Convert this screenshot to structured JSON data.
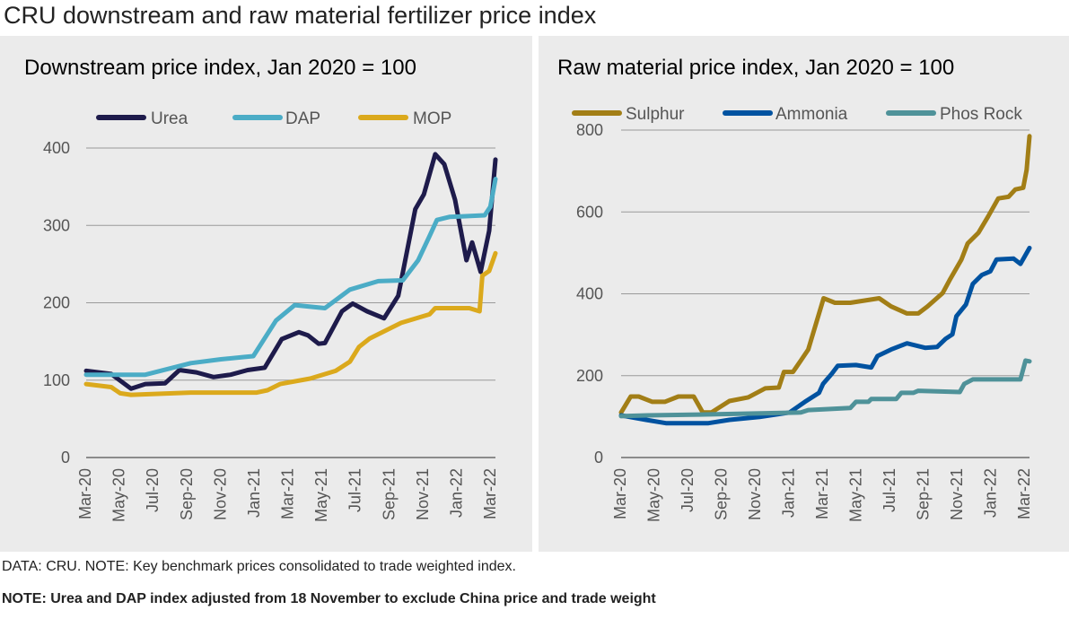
{
  "title": "CRU downstream and raw material fertilizer price index",
  "footer": {
    "source": "DATA: CRU. NOTE: Key benchmark prices consolidated to trade weighted index.",
    "note": "NOTE: Urea and DAP index adjusted from 18 November to exclude China price and trade weight"
  },
  "chart_data": [
    {
      "type": "line",
      "title": "Downstream price index, Jan 2020 = 100",
      "ylim": [
        0,
        400
      ],
      "yticks": [
        0,
        100,
        200,
        300,
        400
      ],
      "xlim": [
        "2020-03-01",
        "2022-03-01"
      ],
      "xticks": [
        "Mar-20",
        "May-20",
        "Jul-20",
        "Sep-20",
        "Nov-20",
        "Jan-21",
        "Mar-21",
        "May-21",
        "Jul-21",
        "Sep-21",
        "Nov-21",
        "Jan-22",
        "Mar-22"
      ],
      "grid": true,
      "legend": "top",
      "series": [
        {
          "name": "Urea",
          "color": "#1e1b4b",
          "points": [
            [
              "2020-03-01",
              112
            ],
            [
              "2020-04-15",
              108
            ],
            [
              "2020-05-20",
              89
            ],
            [
              "2020-06-15",
              95
            ],
            [
              "2020-07-20",
              96
            ],
            [
              "2020-08-15",
              113
            ],
            [
              "2020-09-15",
              110
            ],
            [
              "2020-10-15",
              104
            ],
            [
              "2020-11-15",
              107
            ],
            [
              "2020-12-15",
              113
            ],
            [
              "2021-01-15",
              116
            ],
            [
              "2021-02-15",
              153
            ],
            [
              "2021-03-15",
              162
            ],
            [
              "2021-04-01",
              158
            ],
            [
              "2021-04-20",
              147
            ],
            [
              "2021-05-01",
              148
            ],
            [
              "2021-06-01",
              189
            ],
            [
              "2021-06-20",
              199
            ],
            [
              "2021-07-15",
              189
            ],
            [
              "2021-08-15",
              180
            ],
            [
              "2021-09-10",
              209
            ],
            [
              "2021-10-10",
              321
            ],
            [
              "2021-10-25",
              340
            ],
            [
              "2021-11-15",
              392
            ],
            [
              "2021-12-01",
              379
            ],
            [
              "2021-12-20",
              333
            ],
            [
              "2022-01-10",
              255
            ],
            [
              "2022-01-20",
              278
            ],
            [
              "2022-02-05",
              240
            ],
            [
              "2022-02-20",
              293
            ],
            [
              "2022-03-01",
              385
            ]
          ]
        },
        {
          "name": "DAP",
          "color": "#4bacc6",
          "points": [
            [
              "2020-03-01",
              107
            ],
            [
              "2020-06-15",
              107
            ],
            [
              "2020-09-05",
              122
            ],
            [
              "2020-10-28",
              127
            ],
            [
              "2020-12-10",
              130
            ],
            [
              "2020-12-25",
              131
            ],
            [
              "2021-02-05",
              177
            ],
            [
              "2021-03-08",
              197
            ],
            [
              "2021-05-01",
              193
            ],
            [
              "2021-06-15",
              217
            ],
            [
              "2021-08-05",
              228
            ],
            [
              "2021-09-18",
              229
            ],
            [
              "2021-10-15",
              255
            ],
            [
              "2021-11-05",
              286
            ],
            [
              "2021-11-18",
              307
            ],
            [
              "2021-12-10",
              311
            ],
            [
              "2022-02-12",
              313
            ],
            [
              "2022-02-22",
              324
            ],
            [
              "2022-03-01",
              360
            ]
          ]
        },
        {
          "name": "MOP",
          "color": "#dba91c",
          "points": [
            [
              "2020-03-01",
              95
            ],
            [
              "2020-04-15",
              91
            ],
            [
              "2020-05-01",
              83
            ],
            [
              "2020-05-20",
              81
            ],
            [
              "2020-09-05",
              84
            ],
            [
              "2021-01-01",
              84
            ],
            [
              "2021-01-20",
              87
            ],
            [
              "2021-02-12",
              95
            ],
            [
              "2021-04-05",
              102
            ],
            [
              "2021-05-20",
              112
            ],
            [
              "2021-06-15",
              124
            ],
            [
              "2021-07-01",
              143
            ],
            [
              "2021-07-20",
              154
            ],
            [
              "2021-09-15",
              174
            ],
            [
              "2021-11-05",
              185
            ],
            [
              "2021-11-15",
              193
            ],
            [
              "2022-01-15",
              193
            ],
            [
              "2022-02-03",
              189
            ],
            [
              "2022-02-08",
              235
            ],
            [
              "2022-02-20",
              241
            ],
            [
              "2022-03-01",
              264
            ]
          ]
        }
      ]
    },
    {
      "type": "line",
      "title": "Raw material price index, Jan 2020 = 100",
      "ylim": [
        0,
        800
      ],
      "yticks": [
        0,
        200,
        400,
        600,
        800
      ],
      "xlim": [
        "2020-03-01",
        "2022-03-01"
      ],
      "xticks": [
        "Mar-20",
        "May-20",
        "Jul-20",
        "Sep-20",
        "Nov-20",
        "Jan-21",
        "Mar-21",
        "May-21",
        "Jul-21",
        "Sep-21",
        "Nov-21",
        "Jan-22",
        "Mar-22"
      ],
      "grid": true,
      "legend": "top",
      "series": [
        {
          "name": "Sulphur",
          "color": "#a27e16",
          "points": [
            [
              "2020-03-01",
              110
            ],
            [
              "2020-03-18",
              149
            ],
            [
              "2020-04-02",
              149
            ],
            [
              "2020-04-26",
              136
            ],
            [
              "2020-05-18",
              136
            ],
            [
              "2020-06-12",
              149
            ],
            [
              "2020-07-09",
              149
            ],
            [
              "2020-07-25",
              110
            ],
            [
              "2020-08-10",
              110
            ],
            [
              "2020-09-12",
              138
            ],
            [
              "2020-10-15",
              147
            ],
            [
              "2020-11-15",
              169
            ],
            [
              "2020-12-09",
              171
            ],
            [
              "2020-12-18",
              209
            ],
            [
              "2021-01-04",
              209
            ],
            [
              "2021-01-15",
              231
            ],
            [
              "2021-02-01",
              264
            ],
            [
              "2021-02-28",
              389
            ],
            [
              "2021-03-18",
              378
            ],
            [
              "2021-04-15",
              378
            ],
            [
              "2021-06-06",
              389
            ],
            [
              "2021-06-27",
              369
            ],
            [
              "2021-07-25",
              352
            ],
            [
              "2021-08-15",
              352
            ],
            [
              "2021-09-01",
              369
            ],
            [
              "2021-09-28",
              402
            ],
            [
              "2021-10-10",
              433
            ],
            [
              "2021-11-01",
              484
            ],
            [
              "2021-11-12",
              523
            ],
            [
              "2021-12-01",
              549
            ],
            [
              "2021-12-18",
              589
            ],
            [
              "2022-01-06",
              633
            ],
            [
              "2022-01-24",
              637
            ],
            [
              "2022-02-06",
              655
            ],
            [
              "2022-02-20",
              659
            ],
            [
              "2022-02-26",
              703
            ],
            [
              "2022-03-01",
              785
            ]
          ]
        },
        {
          "name": "Ammonia",
          "color": "#0052a0",
          "points": [
            [
              "2020-03-01",
              103
            ],
            [
              "2020-04-15",
              92
            ],
            [
              "2020-05-20",
              84
            ],
            [
              "2020-08-05",
              84
            ],
            [
              "2020-09-12",
              92
            ],
            [
              "2020-11-05",
              99
            ],
            [
              "2020-12-28",
              110
            ],
            [
              "2021-01-25",
              136
            ],
            [
              "2021-02-20",
              158
            ],
            [
              "2021-02-27",
              180
            ],
            [
              "2021-03-12",
              204
            ],
            [
              "2021-03-23",
              224
            ],
            [
              "2021-04-25",
              226
            ],
            [
              "2021-05-22",
              220
            ],
            [
              "2021-06-03",
              248
            ],
            [
              "2021-06-27",
              264
            ],
            [
              "2021-07-25",
              279
            ],
            [
              "2021-08-27",
              268
            ],
            [
              "2021-09-18",
              270
            ],
            [
              "2021-10-03",
              290
            ],
            [
              "2021-10-15",
              301
            ],
            [
              "2021-10-22",
              345
            ],
            [
              "2021-11-09",
              374
            ],
            [
              "2021-11-21",
              424
            ],
            [
              "2021-12-07",
              446
            ],
            [
              "2021-12-22",
              455
            ],
            [
              "2022-01-03",
              484
            ],
            [
              "2022-02-03",
              486
            ],
            [
              "2022-02-15",
              473
            ],
            [
              "2022-03-01",
              512
            ]
          ]
        },
        {
          "name": "Phos Rock",
          "color": "#4f9299",
          "points": [
            [
              "2020-03-01",
              101
            ],
            [
              "2020-04-18",
              103
            ],
            [
              "2020-07-20",
              105
            ],
            [
              "2021-01-18",
              110
            ],
            [
              "2021-02-01",
              116
            ],
            [
              "2021-04-15",
              121
            ],
            [
              "2021-04-25",
              136
            ],
            [
              "2021-05-17",
              136
            ],
            [
              "2021-05-22",
              143
            ],
            [
              "2021-07-06",
              143
            ],
            [
              "2021-07-15",
              158
            ],
            [
              "2021-08-06",
              158
            ],
            [
              "2021-08-15",
              163
            ],
            [
              "2021-10-28",
              160
            ],
            [
              "2021-11-06",
              180
            ],
            [
              "2021-11-21",
              191
            ],
            [
              "2022-02-15",
              191
            ],
            [
              "2022-02-24",
              237
            ],
            [
              "2022-03-01",
              235
            ]
          ]
        }
      ]
    }
  ]
}
